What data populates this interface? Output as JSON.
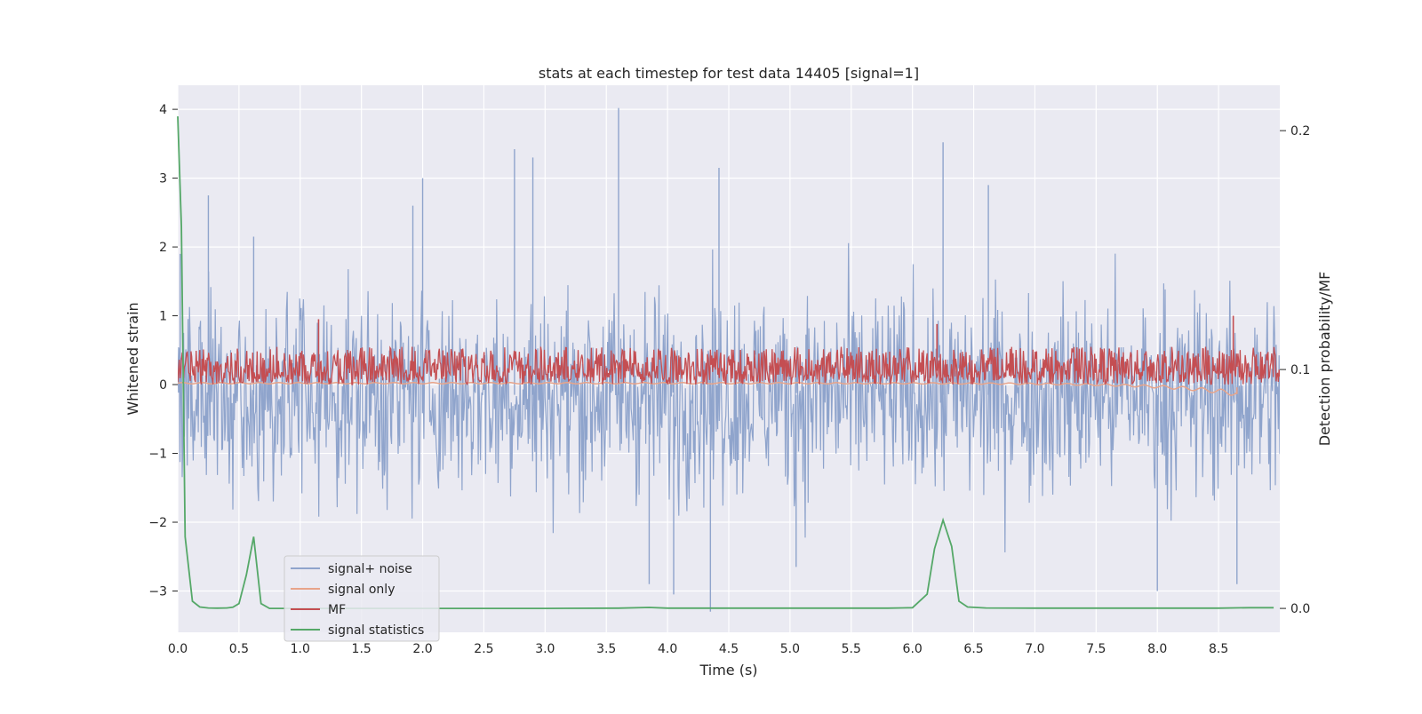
{
  "chart_data": {
    "type": "line",
    "title": "stats at each timestep for test data 14405 [signal=1]",
    "xlabel": "Time (s)",
    "ylabel": "Whitened strain",
    "y2label": "Detection probability/MF",
    "xlim": [
      0.0,
      9.0
    ],
    "ylim": [
      -3.6,
      4.35
    ],
    "y2lim": [
      -0.01,
      0.219
    ],
    "xticks": [
      0.0,
      0.5,
      1.0,
      1.5,
      2.0,
      2.5,
      3.0,
      3.5,
      4.0,
      4.5,
      5.0,
      5.5,
      6.0,
      6.5,
      7.0,
      7.5,
      8.0,
      8.5
    ],
    "xtick_labels": [
      "0.0",
      "0.5",
      "1.0",
      "1.5",
      "2.0",
      "2.5",
      "3.0",
      "3.5",
      "4.0",
      "4.5",
      "5.0",
      "5.5",
      "6.0",
      "6.5",
      "7.0",
      "7.5",
      "8.0",
      "8.5"
    ],
    "yticks": [
      -3,
      -2,
      -1,
      0,
      1,
      2,
      3,
      4
    ],
    "ytick_labels": [
      "−3",
      "−2",
      "−1",
      "0",
      "1",
      "2",
      "3",
      "4"
    ],
    "y2ticks": [
      0.0,
      0.1,
      0.2
    ],
    "y2tick_labels": [
      "0.0",
      "0.1",
      "0.2"
    ],
    "grid": true,
    "legend_position": "lower-left",
    "series": [
      {
        "name": "signal+ noise",
        "color": "#8fa4cc",
        "axis": "left",
        "kind": "noise",
        "envelope": {
          "center": -0.15,
          "spread": 1.0,
          "min": -3.3,
          "max": 4.02
        },
        "spikes": [
          [
            0.02,
            1.9
          ],
          [
            0.25,
            2.75
          ],
          [
            0.62,
            2.15
          ],
          [
            1.92,
            2.6
          ],
          [
            2.0,
            3.0
          ],
          [
            2.75,
            3.42
          ],
          [
            2.9,
            3.3
          ],
          [
            3.6,
            4.02
          ],
          [
            4.42,
            3.15
          ],
          [
            4.35,
            -3.3
          ],
          [
            4.05,
            -3.05
          ],
          [
            6.25,
            3.52
          ],
          [
            6.62,
            2.9
          ],
          [
            8.0,
            -3.0
          ],
          [
            8.65,
            -2.9
          ],
          [
            5.05,
            -2.65
          ],
          [
            3.85,
            -2.9
          ]
        ]
      },
      {
        "name": "signal only",
        "color": "#e8a48a",
        "axis": "left",
        "kind": "signal",
        "chirp_peak_time": 8.65,
        "chirp_peak_amp": -0.15
      },
      {
        "name": "MF",
        "color": "#c44e52",
        "axis": "left",
        "kind": "band",
        "envelope": {
          "center": 0.2,
          "low": 0.0,
          "high": 0.55,
          "max": 1.0
        },
        "spikes": [
          [
            1.15,
            0.95
          ],
          [
            6.2,
            0.88
          ],
          [
            8.62,
            1.0
          ]
        ]
      },
      {
        "name": "signal statistics",
        "color": "#55a868",
        "axis": "right",
        "kind": "line",
        "x": [
          0.0,
          0.03,
          0.06,
          0.12,
          0.18,
          0.25,
          0.32,
          0.4,
          0.45,
          0.5,
          0.56,
          0.62,
          0.68,
          0.75,
          1.0,
          2.0,
          3.0,
          3.6,
          3.85,
          4.0,
          5.0,
          5.8,
          6.0,
          6.12,
          6.18,
          6.25,
          6.32,
          6.38,
          6.45,
          6.6,
          7.0,
          8.0,
          8.5,
          8.75,
          8.95
        ],
        "values": [
          0.206,
          0.16,
          0.03,
          0.003,
          0.0006,
          0.0002,
          0.0001,
          0.0002,
          0.0005,
          0.002,
          0.014,
          0.03,
          0.002,
          0.0,
          0.0,
          0.0,
          0.0,
          0.0001,
          0.0004,
          0.0001,
          0.0001,
          0.0001,
          0.0003,
          0.006,
          0.025,
          0.037,
          0.026,
          0.003,
          0.0006,
          0.0002,
          0.0001,
          0.0001,
          0.0001,
          0.0003,
          0.0003
        ]
      }
    ]
  }
}
